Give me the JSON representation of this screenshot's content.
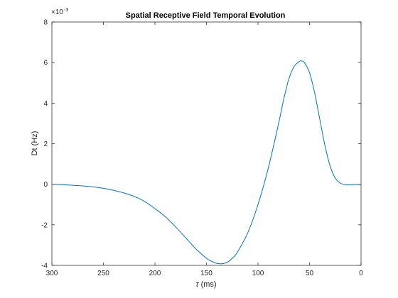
{
  "chart_data": {
    "type": "line",
    "title": "Spatial Receptive Field Temporal Evolution",
    "xlabel_symbol": "τ",
    "xlabel_unit": " (ms)",
    "ylabel": "Dt (Hz)",
    "y_exponent_prefix": "×10",
    "y_exponent_power": "-3",
    "xlim": [
      300,
      0
    ],
    "x_reversed": true,
    "ylim": [
      -4,
      8
    ],
    "y_multiplier": 0.001,
    "x_ticks": [
      300,
      250,
      200,
      150,
      100,
      50,
      0
    ],
    "x_tick_labels": [
      "300",
      "250",
      "200",
      "150",
      "100",
      "50",
      "0"
    ],
    "y_ticks": [
      -4,
      -2,
      0,
      2,
      4,
      6,
      8
    ],
    "y_tick_labels": [
      "-4",
      "-2",
      "0",
      "2",
      "4",
      "6",
      "8"
    ],
    "grid": false,
    "line_color": "#0072BD",
    "series": [
      {
        "x": [
          300,
          290,
          280,
          270,
          260,
          250,
          240,
          230,
          220,
          210,
          200,
          190,
          180,
          170,
          160,
          150,
          145,
          140,
          135,
          130,
          125,
          120,
          110,
          100,
          90,
          80,
          75,
          70,
          65,
          60,
          58,
          55,
          50,
          45,
          40,
          35,
          30,
          25,
          20,
          15,
          10,
          5,
          0
        ],
        "y": [
          0.0,
          -0.02,
          -0.05,
          -0.08,
          -0.13,
          -0.2,
          -0.3,
          -0.43,
          -0.6,
          -0.85,
          -1.2,
          -1.6,
          -2.1,
          -2.65,
          -3.2,
          -3.65,
          -3.8,
          -3.9,
          -3.92,
          -3.85,
          -3.65,
          -3.35,
          -2.4,
          -1.0,
          0.8,
          3.0,
          4.2,
          5.2,
          5.8,
          6.05,
          6.08,
          6.0,
          5.5,
          4.5,
          3.2,
          1.9,
          0.9,
          0.3,
          0.05,
          -0.02,
          -0.02,
          -0.01,
          -0.01
        ]
      }
    ]
  }
}
